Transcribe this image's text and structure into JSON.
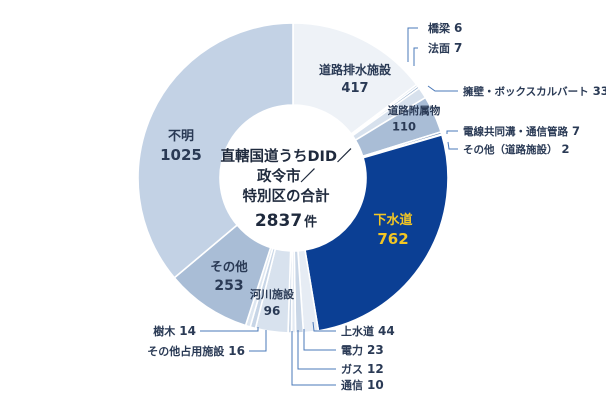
{
  "chart_data": {
    "type": "pie",
    "variant": "donut",
    "center_text": [
      "直轄国道うちDID／",
      "政令市／",
      "特別区の合計"
    ],
    "total": "2837",
    "total_unit": "件",
    "slices": [
      {
        "label": "道路排水施設",
        "value": 417,
        "color": "#eef2f7",
        "text": "#2a3a55"
      },
      {
        "label": "橋梁",
        "value": 6,
        "color": "#b7c9de",
        "text": "#2a3a55"
      },
      {
        "label": "法面",
        "value": 7,
        "color": "#8aa6c6",
        "text": "#2a3a55"
      },
      {
        "label": "擁壁・ボックスカルバート",
        "value": 33,
        "color": "#d7e1ed",
        "text": "#2a3a55"
      },
      {
        "label": "道路附属物",
        "value": 110,
        "color": "#a9bdd6",
        "text": "#2a3a55"
      },
      {
        "label": "電線共同溝・通信管路",
        "value": 7,
        "color": "#6f8db6",
        "text": "#2a3a55"
      },
      {
        "label": "その他（道路施設）",
        "value": 2,
        "color": "#dfe7f1",
        "text": "#2a3a55"
      },
      {
        "label": "下水道",
        "value": 762,
        "color": "#0b3f94",
        "text": "#f3c623"
      },
      {
        "label": "上水道",
        "value": 44,
        "color": "#e6ecf4",
        "text": "#2a3a55"
      },
      {
        "label": "電力",
        "value": 23,
        "color": "#c9d6e6",
        "text": "#2a3a55"
      },
      {
        "label": "ガス",
        "value": 12,
        "color": "#e3eaf3",
        "text": "#2a3a55"
      },
      {
        "label": "通信",
        "value": 10,
        "color": "#c5d3e4",
        "text": "#2a3a55"
      },
      {
        "label": "河川施設",
        "value": 96,
        "color": "#d8e2ee",
        "text": "#2a3a55"
      },
      {
        "label": "その他占用施設",
        "value": 16,
        "color": "#c7d5e6",
        "text": "#2a3a55"
      },
      {
        "label": "樹木",
        "value": 14,
        "color": "#dde6f0",
        "text": "#2a3a55"
      },
      {
        "label": "その他",
        "value": 253,
        "color": "#a9bdd6",
        "text": "#2a3a55"
      },
      {
        "label": "不明",
        "value": 1025,
        "color": "#c3d2e5",
        "text": "#2a3a55"
      }
    ]
  }
}
